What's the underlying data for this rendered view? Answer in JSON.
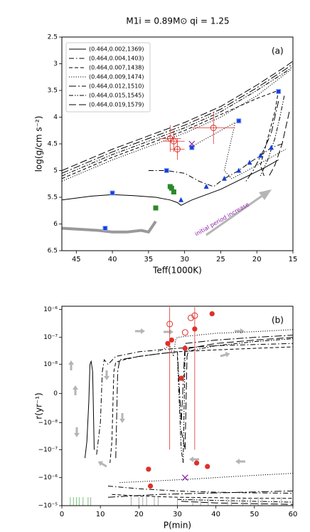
{
  "chart_data": [
    {
      "type": "line",
      "title": "M1i = 0.89M⊙ qi = 1.25",
      "panel_label": "(a)",
      "x_label": "Teff(1000K)",
      "y_label": "log(g/cm s⁻²)",
      "annotation": "initial period increase",
      "annotation_color": "#8a1fa8",
      "xlim": [
        47,
        15
      ],
      "xticks": [
        45,
        40,
        35,
        30,
        25,
        20,
        15
      ],
      "ylim": [
        6.5,
        2.5
      ],
      "yticks": [
        2.5,
        3.0,
        3.5,
        4.0,
        4.5,
        5.0,
        5.5,
        6.0,
        6.5
      ],
      "legend": "upper left",
      "series": [
        {
          "name": "(0.464,0.002,1369)",
          "color": "#000",
          "linestyle": "solid",
          "x": [
            47,
            43,
            40,
            37,
            34,
            32,
            31,
            30.5,
            29,
            27,
            25,
            22,
            19,
            17
          ],
          "y": [
            5.55,
            5.48,
            5.45,
            5.47,
            5.5,
            5.55,
            5.6,
            5.65,
            5.55,
            5.45,
            5.35,
            5.15,
            4.95,
            4.8
          ]
        },
        {
          "name": "(0.464,0.004,1403)",
          "color": "#000",
          "linestyle": "dashdot",
          "x": [
            35,
            32.5,
            30,
            28,
            26,
            24.5,
            22.5,
            21,
            19.5,
            18,
            16.5
          ],
          "y": [
            5.0,
            5.0,
            5.05,
            5.2,
            5.3,
            5.15,
            5.0,
            4.85,
            4.72,
            4.57,
            4.5
          ]
        },
        {
          "name": "(0.464,0.007,1438)",
          "color": "#000",
          "linestyle": "dashed",
          "x": [
            47,
            40,
            35,
            30,
            25,
            20,
            17,
            17.5,
            18.5,
            19.5,
            19
          ],
          "y": [
            5.15,
            4.75,
            4.5,
            4.25,
            3.95,
            3.65,
            3.5,
            3.9,
            4.4,
            4.9,
            5.1
          ]
        },
        {
          "name": "(0.464,0.009,1474)",
          "color": "#000",
          "linestyle": "dotted",
          "x": [
            47,
            40,
            35,
            30,
            25,
            20,
            15.2,
            null,
            29,
            27,
            25,
            23,
            23.5,
            24,
            24.5,
            23.5,
            22,
            20,
            18,
            16
          ],
          "y": [
            5.2,
            4.8,
            4.55,
            4.3,
            4.0,
            3.6,
            3.1,
            null,
            4.55,
            4.4,
            4.25,
            4.1,
            4.4,
            4.7,
            5.0,
            5.15,
            5.05,
            4.9,
            4.75,
            4.6
          ]
        },
        {
          "name": "(0.464,0.012,1510)",
          "color": "#000",
          "linestyle": "dashdot2",
          "x": [
            47,
            40,
            35,
            30,
            25,
            20,
            16,
            15,
            null,
            17,
            17.5,
            18,
            19,
            20.5,
            21.5
          ],
          "y": [
            5.05,
            4.65,
            4.4,
            4.15,
            3.85,
            3.45,
            3.1,
            3.0,
            null,
            3.7,
            4.0,
            4.3,
            4.6,
            5.0,
            5.2
          ]
        },
        {
          "name": "(0.464,0.015,1545)",
          "color": "#000",
          "linestyle": "dashdotdot",
          "x": [
            47,
            40,
            35,
            30,
            25,
            20,
            16,
            15,
            null,
            16.2,
            16.8,
            17.5,
            18.5,
            19.5
          ],
          "y": [
            5.1,
            4.7,
            4.45,
            4.2,
            3.9,
            3.5,
            3.15,
            3.05,
            null,
            3.6,
            4.0,
            4.4,
            4.8,
            5.1
          ]
        },
        {
          "name": "(0.464,0.019,1579)",
          "color": "#000",
          "linestyle": "longdash",
          "x": [
            47,
            40,
            35,
            30,
            25,
            20,
            16,
            15,
            null,
            15.5,
            16,
            16.5,
            17.5,
            18.3
          ],
          "y": [
            5.0,
            4.6,
            4.35,
            4.1,
            3.8,
            3.4,
            3.05,
            2.95,
            null,
            3.9,
            4.2,
            4.5,
            4.9,
            5.1
          ]
        },
        {
          "color": "#999",
          "linestyle": "thick",
          "x": [
            47,
            42,
            40,
            38,
            36,
            35,
            34.5,
            34
          ],
          "y": [
            6.08,
            6.12,
            6.15,
            6.15,
            6.12,
            6.15,
            6.05,
            5.95
          ]
        }
      ],
      "points": [
        {
          "marker": "square",
          "color": "#1a3fd6",
          "x": [
            41,
            40,
            32.5,
            29,
            22.5,
            17
          ],
          "y": [
            6.08,
            5.42,
            5.0,
            4.57,
            4.07,
            3.52
          ]
        },
        {
          "marker": "triangle",
          "color": "#1a3fd6",
          "x": [
            30.5,
            27,
            24.5,
            22.5,
            21,
            19.5,
            18
          ],
          "y": [
            5.55,
            5.3,
            5.15,
            5.0,
            4.85,
            4.72,
            4.57
          ]
        },
        {
          "marker": "square",
          "color": "#2a8a2a",
          "x": [
            32,
            31.8,
            31.5,
            34
          ],
          "y": [
            5.3,
            5.33,
            5.4,
            5.7
          ]
        },
        {
          "marker": "open-circle",
          "color": "#e0302a",
          "x": [
            32,
            31.5,
            31,
            26
          ],
          "y": [
            4.4,
            4.45,
            4.6,
            4.2
          ],
          "xerr": [
            1.5,
            1.5,
            1,
            3
          ],
          "yerr": [
            0.25,
            0.2,
            0.2,
            0.3
          ]
        },
        {
          "marker": "x",
          "color": "#8a1fa8",
          "x": [
            29
          ],
          "y": [
            4.5
          ]
        }
      ]
    },
    {
      "type": "line",
      "panel_label": "(b)",
      "x_label": "P(min)",
      "y_label": "r(yr⁻¹)",
      "xlim": [
        0,
        60
      ],
      "xticks": [
        0,
        10,
        20,
        30,
        40,
        50,
        60
      ],
      "yscale": "symlog",
      "linthresh": 1e-09,
      "ylim": [
        -1e-05,
        1.3e-06
      ],
      "yticks": [
        {
          "value": 1e-06,
          "label": "10⁻⁶"
        },
        {
          "value": 1e-07,
          "label": "10⁻⁷"
        },
        {
          "value": 1e-08,
          "label": "10⁻⁸"
        },
        0,
        {
          "value": -1e-08,
          "label": "−10⁻⁸"
        },
        {
          "value": -1e-07,
          "label": "−10⁻⁷"
        },
        {
          "value": -1e-06,
          "label": "−10⁻⁶"
        },
        {
          "value": -1e-05,
          "label": "−10⁻⁵"
        }
      ],
      "series": [
        {
          "color": "#000",
          "linestyle": "solid",
          "x": [
            6,
            6.5,
            7,
            7.3,
            7.6,
            8,
            8.4
          ],
          "y": [
            -2e-07,
            -5e-08,
            -1e-09,
            1e-08,
            1.3e-08,
            5e-09,
            -1e-07
          ]
        },
        {
          "color": "#000",
          "linestyle": "dashdot",
          "x": [
            9,
            10,
            10.5,
            11,
            12,
            14,
            20,
            30,
            40,
            50,
            60,
            null,
            12,
            20,
            30,
            40,
            50,
            60
          ],
          "y": [
            -1.5e-07,
            -1e-08,
            5e-09,
            1.5e-08,
            1e-08,
            2e-08,
            3e-08,
            4e-08,
            5e-08,
            5.5e-08,
            6e-08,
            null,
            -2e-06,
            -2.5e-06,
            -3e-06,
            -3.3e-06,
            -3.5e-06,
            -3.6e-06
          ]
        },
        {
          "color": "#000",
          "linestyle": "dashed",
          "x": [
            12.5,
            13,
            13.5,
            14,
            16,
            20,
            25,
            30,
            40,
            50,
            60,
            null,
            13,
            20,
            30,
            40,
            50,
            60
          ],
          "y": [
            -3e-07,
            -5e-08,
            5e-09,
            1.2e-08,
            1.5e-08,
            2e-08,
            2.5e-08,
            3e-08,
            3.5e-08,
            4e-08,
            4.5e-08,
            null,
            -4e-06,
            -4.5e-06,
            -5e-06,
            -5.2e-06,
            -5.5e-06,
            -5.5e-06
          ]
        },
        {
          "color": "#000",
          "linestyle": "dotted",
          "x": [
            25,
            28,
            29,
            29.5,
            30,
            35,
            40,
            50,
            60,
            null,
            15,
            25,
            35,
            45,
            60
          ],
          "y": [
            3e-08,
            5e-08,
            2e-08,
            8e-08,
            1e-07,
            1.2e-07,
            1.4e-07,
            1.6e-07,
            1.9e-07,
            null,
            -1.5e-06,
            -1.3e-06,
            -1.1e-06,
            -9e-07,
            -7e-07
          ]
        },
        {
          "color": "#000",
          "linestyle": "dashdot2",
          "x": [
            14,
            14.5,
            15,
            20,
            25,
            30,
            31,
            32,
            40,
            50,
            60,
            null,
            12,
            25,
            40,
            60
          ],
          "y": [
            -2e-07,
            5e-09,
            1.5e-08,
            2e-08,
            2.5e-08,
            3e-08,
            -1e-08,
            6e-08,
            8e-08,
            1e-07,
            1.2e-07,
            null,
            -5e-06,
            -4e-06,
            -3.5e-06,
            -3e-06
          ]
        },
        {
          "color": "#000",
          "linestyle": "dashdotdot",
          "x": [
            30,
            31,
            31.5,
            32,
            40,
            50,
            60,
            null,
            30,
            40,
            50,
            60
          ],
          "y": [
            2e-08,
            -1e-07,
            -3e-07,
            3e-08,
            5e-08,
            7e-08,
            9e-08,
            null,
            -6e-06,
            -6.5e-06,
            -7e-06,
            -7.5e-06
          ]
        },
        {
          "color": "#000",
          "linestyle": "longdash",
          "x": [
            31,
            32,
            32.5,
            33,
            40,
            50,
            60,
            null,
            31,
            40,
            50,
            60
          ],
          "y": [
            -2e-08,
            -1e-07,
            2e-08,
            4e-08,
            6e-08,
            8e-08,
            1e-07,
            null,
            -7e-06,
            -8e-06,
            -8.5e-06,
            -9e-06
          ]
        }
      ],
      "points": [
        {
          "marker": "circle",
          "color": "#e0302a",
          "x": [
            27.5,
            28.5,
            31,
            32,
            34.5,
            35,
            37.8,
            39,
            22.5,
            23
          ],
          "y": [
            6e-08,
            8e-08,
            2.5e-09,
            4e-08,
            2e-07,
            -3e-07,
            -4e-07,
            7e-07,
            -5e-07,
            -2e-06
          ]
        },
        {
          "marker": "open-circle",
          "color": "#e0302a",
          "x": [
            28,
            32,
            33.5,
            34.5
          ],
          "y": [
            3e-07,
            1.5e-07,
            5e-07,
            6e-07
          ],
          "ylo": [
            -1e-07,
            null,
            null,
            -1e-07
          ],
          "yhi": [
            1.2e-06,
            null,
            null,
            1.2e-06
          ]
        },
        {
          "marker": "x",
          "color": "#8a1fa8",
          "x": [
            32
          ],
          "y": [
            -1e-06
          ]
        },
        {
          "marker": "rug",
          "color": "#7cc47c",
          "x": [
            2.2,
            3,
            3.8,
            4.5,
            5.5,
            6.8
          ]
        },
        {
          "marker": "rug",
          "color": "#aaaaaa",
          "x": [
            7.5,
            18,
            20,
            21,
            22,
            24,
            25,
            30,
            34,
            36,
            38,
            43,
            44,
            47,
            49,
            51,
            52,
            55,
            57
          ]
        }
      ]
    }
  ]
}
